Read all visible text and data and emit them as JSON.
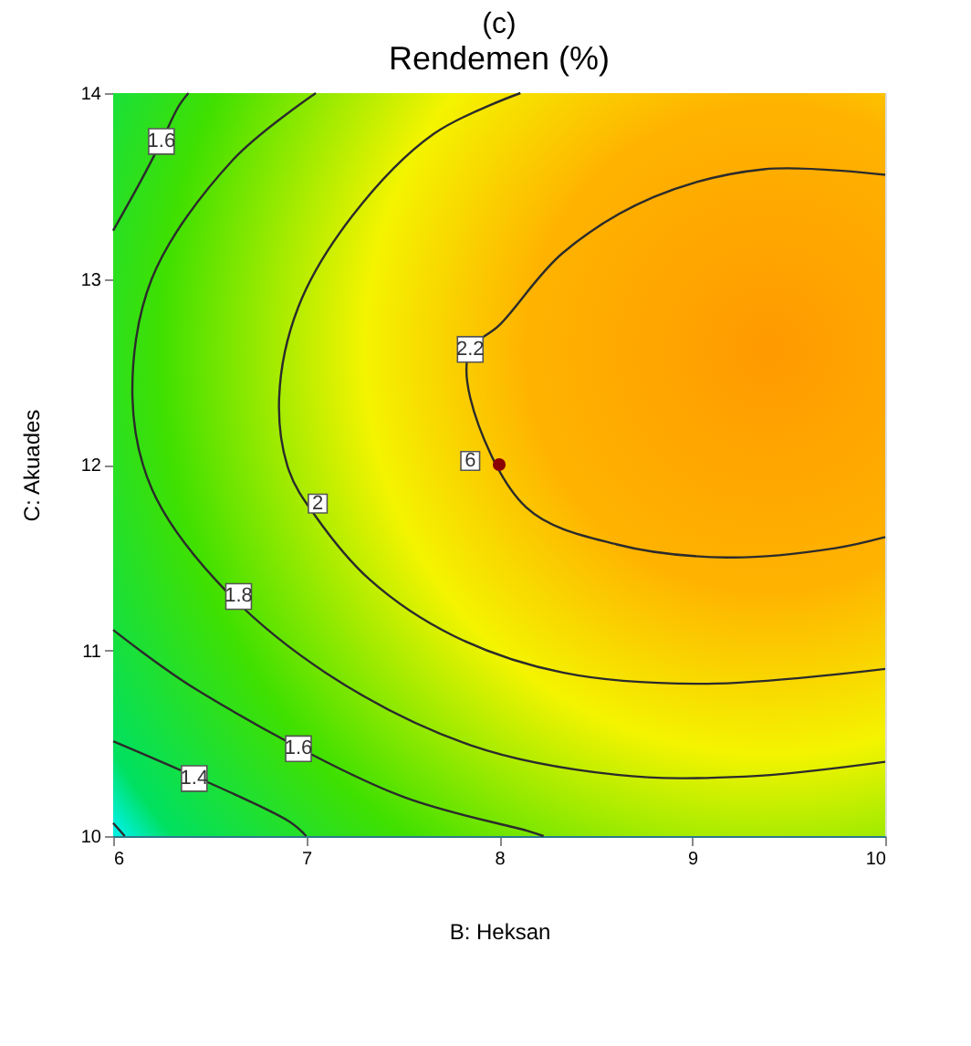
{
  "chart_data": {
    "type": "line",
    "title": "(c)",
    "subtitle": "Rendemen (%)",
    "xlabel": "B: Heksan",
    "ylabel": "C: Akuades",
    "xlim": [
      6,
      10
    ],
    "ylim": [
      10,
      14
    ],
    "xticks": [
      6,
      7,
      8,
      9,
      10
    ],
    "yticks": [
      10,
      11,
      12,
      13,
      14
    ],
    "marker": "none",
    "line_style": "solid",
    "series": [
      {
        "color": "#2b2b2b",
        "x": [
          10,
          9.37,
          8.8,
          8.33,
          8.0,
          7.85,
          7.85,
          8.14,
          8.61,
          9.18,
          9.74,
          10
        ],
        "values": [
          13.56,
          13.59,
          13.44,
          13.14,
          12.75,
          12.62,
          12.36,
          11.77,
          11.57,
          11.5,
          11.55,
          11.61
        ]
      },
      {
        "color": "#2b2b2b",
        "x": [
          8.11,
          7.66,
          7.24,
          6.96,
          6.86,
          6.91,
          7.05,
          7.33,
          7.76,
          8.33,
          9.08,
          10
        ],
        "values": [
          14,
          13.78,
          13.34,
          12.85,
          12.36,
          11.97,
          11.72,
          11.38,
          11.08,
          10.88,
          10.82,
          10.9
        ]
      },
      {
        "color": "#2b2b2b",
        "x": [
          7.05,
          6.62,
          6.2,
          6.1,
          6.2,
          6.53,
          7.1,
          7.85,
          8.61,
          9.27,
          10
        ],
        "values": [
          14,
          13.64,
          13.0,
          12.36,
          11.87,
          11.38,
          10.88,
          10.49,
          10.33,
          10.32,
          10.4
        ]
      },
      {
        "color": "#2b2b2b",
        "x": [
          6,
          6.43,
          7.48,
          8.14,
          8.23
        ],
        "values": [
          11.11,
          10.79,
          10.22,
          10.03,
          10.0
        ]
      },
      {
        "color": "#2b2b2b",
        "x": [
          6,
          6.15,
          6.25,
          6.34,
          6.39
        ],
        "values": [
          13.26,
          13.54,
          13.74,
          13.93,
          14
        ]
      },
      {
        "color": "#2b2b2b",
        "x": [
          6,
          6.91,
          7.0
        ],
        "values": [
          10.51,
          10.08,
          10.0
        ]
      },
      {
        "color": "#2b2b2b",
        "x": [
          6,
          6.06
        ],
        "values": [
          10.07,
          10.0
        ]
      },
      {
        "type": "scatter",
        "marker": "circle",
        "color": "#8b0000",
        "x": [
          8
        ],
        "values": [
          12
        ]
      }
    ],
    "annotations": [
      {
        "text": "2.2",
        "x": 7.85,
        "y": 12.62
      },
      {
        "text": "2",
        "x": 7.06,
        "y": 11.79
      },
      {
        "text": "1.8",
        "x": 6.65,
        "y": 11.29
      },
      {
        "text": "1.6",
        "x": 6.96,
        "y": 10.47
      },
      {
        "text": "1.6",
        "x": 6.25,
        "y": 13.74
      },
      {
        "text": "1.4",
        "x": 6.42,
        "y": 10.31
      },
      {
        "text": "6",
        "x": 7.85,
        "y": 12.02
      }
    ]
  }
}
